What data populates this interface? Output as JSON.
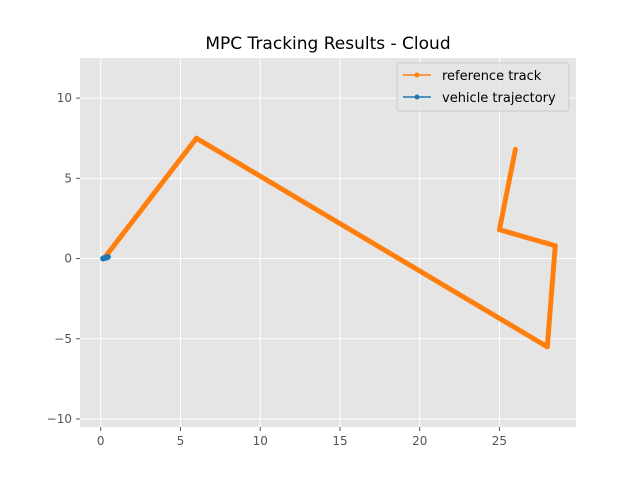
{
  "chart_data": {
    "type": "line",
    "title": "MPC Tracking Results - Cloud",
    "xlabel": "",
    "ylabel": "",
    "xlim": [
      -1.3,
      29.8
    ],
    "ylim": [
      -10.5,
      12.5
    ],
    "xticks": [
      0,
      5,
      10,
      15,
      20,
      25
    ],
    "yticks": [
      -10,
      -5,
      0,
      5,
      10
    ],
    "xtick_labels": [
      "0",
      "5",
      "10",
      "15",
      "20",
      "25"
    ],
    "ytick_labels": [
      "−10",
      "−5",
      "0",
      "5",
      "10"
    ],
    "grid": true,
    "legend_position": "top-right",
    "series": [
      {
        "name": "reference track",
        "color": "#ff7f0e",
        "x": [
          0.2,
          6.0,
          28.0,
          28.5,
          25.0,
          26.0
        ],
        "y": [
          0.0,
          7.5,
          -5.5,
          0.8,
          1.8,
          6.8
        ]
      },
      {
        "name": "vehicle trajectory",
        "color": "#1f77b4",
        "x": [
          0.15,
          0.25,
          0.35,
          0.45
        ],
        "y": [
          0.0,
          0.03,
          0.06,
          0.1
        ]
      }
    ]
  }
}
